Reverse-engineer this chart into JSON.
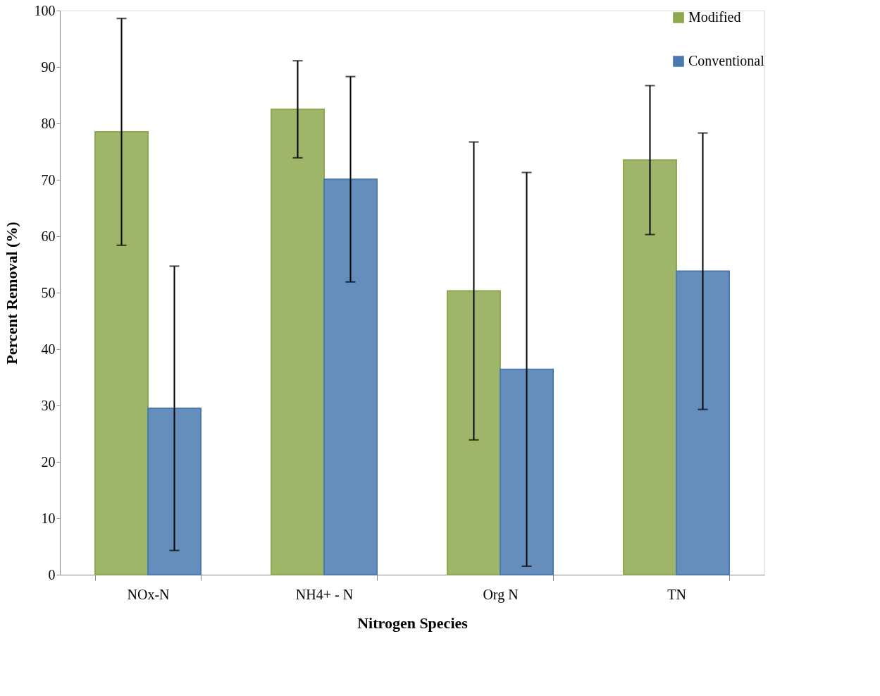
{
  "chart_data": {
    "type": "bar",
    "xlabel": "Nitrogen Species",
    "ylabel": "Percent Removal (%)",
    "categories": [
      "NOx-N",
      "NH4+ - N",
      "Org N",
      "TN"
    ],
    "series": [
      {
        "name": "Modified",
        "color": "#8ea84f",
        "values": [
          78.5,
          82.5,
          50.3,
          73.5
        ],
        "errors": [
          20.1,
          8.6,
          26.4,
          13.2
        ]
      },
      {
        "name": "Conventional",
        "color": "#4a7ab0",
        "values": [
          29.5,
          70.1,
          36.4,
          53.8
        ],
        "errors": [
          25.2,
          18.2,
          34.9,
          24.5
        ]
      }
    ],
    "ylim": [
      0,
      100
    ],
    "yticks": [
      0,
      10,
      20,
      30,
      40,
      50,
      60,
      70,
      80,
      90,
      100
    ],
    "grid": false,
    "legend": "top right"
  }
}
